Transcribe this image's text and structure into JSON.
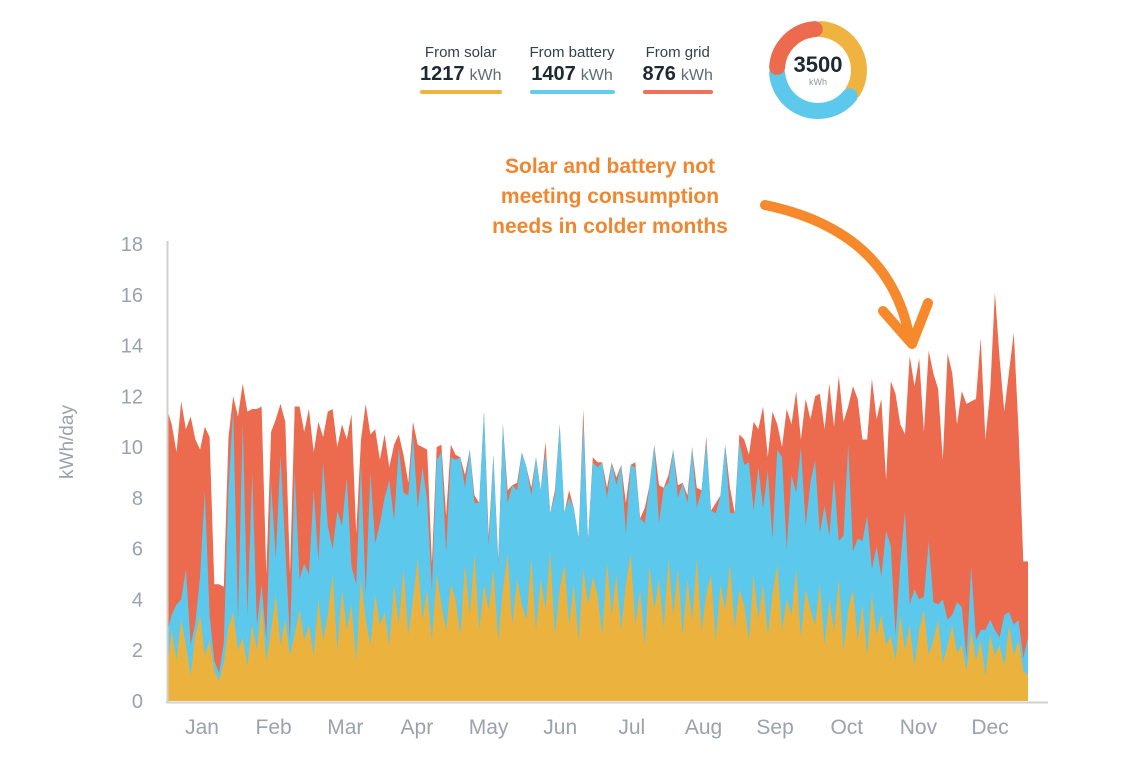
{
  "legend": {
    "items": [
      {
        "label": "From solar",
        "value": "1217",
        "unit": "kWh",
        "color": "#EFB440"
      },
      {
        "label": "From battery",
        "value": "1407",
        "unit": "kWh",
        "color": "#64CBEE"
      },
      {
        "label": "From grid",
        "value": "876",
        "unit": "kWh",
        "color": "#F0705C"
      }
    ]
  },
  "annotation": {
    "lines": [
      "Solar and battery not",
      "meeting consumption",
      "needs in colder months"
    ],
    "color": "#F0862E"
  },
  "chart_data": [
    {
      "type": "area",
      "stacked": true,
      "title": "",
      "xlabel": "",
      "ylabel": "kWh/day",
      "ylim": [
        0,
        18
      ],
      "yticks": [
        0,
        2,
        4,
        6,
        8,
        10,
        12,
        14,
        16,
        18
      ],
      "grid": false,
      "legend_position": "top",
      "sample_interval_days": 2,
      "categories": [
        "Jan",
        "Feb",
        "Mar",
        "Apr",
        "May",
        "Jun",
        "Jul",
        "Aug",
        "Sep",
        "Oct",
        "Nov",
        "Dec"
      ],
      "colors": {
        "solar": "#ECB23E",
        "battery": "#5BC8EC",
        "grid": "#EC6A4E"
      },
      "series_order": [
        "solar",
        "battery",
        "grid"
      ],
      "months": [
        {
          "label": "Jan",
          "solar": [
            1.2,
            2.8,
            1.6,
            3.2,
            2.2,
            1.0,
            2.6,
            3.4,
            1.8,
            2.4,
            1.2,
            0.8,
            1.5,
            2.9,
            3.5,
            2.0
          ],
          "battery": [
            1.5,
            0.6,
            2.2,
            0.8,
            3.0,
            1.2,
            0.5,
            1.5,
            6.5,
            1.0,
            0.4,
            0.3,
            0.8,
            5.5,
            8.0,
            1.2
          ],
          "grid": [
            8.8,
            7.5,
            6.0,
            7.8,
            5.5,
            9.0,
            7.2,
            5.0,
            2.5,
            7.0,
            3.0,
            3.5,
            2.2,
            2.0,
            0.5,
            8.0
          ]
        },
        {
          "label": "Feb",
          "solar": [
            2.5,
            1.4,
            3.0,
            2.0,
            3.8,
            1.6,
            2.8,
            4.2,
            2.2,
            3.2,
            1.8,
            2.6,
            3.6,
            2.4
          ],
          "battery": [
            8.5,
            2.0,
            6.0,
            1.0,
            0.8,
            0.8,
            5.8,
            1.4,
            7.5,
            2.8,
            0.6,
            6.5,
            1.2,
            3.0
          ],
          "grid": [
            1.5,
            8.0,
            2.5,
            8.5,
            7.0,
            2.6,
            2.0,
            5.5,
            2.0,
            5.0,
            2.6,
            2.5,
            6.8,
            5.2
          ]
        },
        {
          "label": "Mar",
          "solar": [
            3.0,
            1.8,
            4.0,
            2.4,
            3.4,
            5.0,
            2.0,
            4.4,
            2.8,
            3.8,
            1.6,
            4.8,
            3.2,
            2.2,
            4.2,
            3.0
          ],
          "battery": [
            2.0,
            6.5,
            1.5,
            7.0,
            3.5,
            1.0,
            5.5,
            2.5,
            6.0,
            1.5,
            3.0,
            4.5,
            1.0,
            6.8,
            2.0,
            4.0
          ],
          "grid": [
            6.5,
            1.5,
            5.5,
            1.0,
            4.5,
            5.5,
            2.5,
            4.0,
            1.5,
            6.0,
            2.0,
            1.0,
            7.5,
            1.5,
            4.5,
            2.5
          ]
        },
        {
          "label": "Apr",
          "solar": [
            3.5,
            2.2,
            4.6,
            3.0,
            5.2,
            2.6,
            4.0,
            5.6,
            3.2,
            4.4,
            2.4,
            5.0,
            3.8,
            2.8,
            4.6
          ],
          "battery": [
            4.5,
            6.5,
            2.5,
            7.0,
            3.0,
            5.5,
            6.5,
            2.0,
            6.0,
            3.5,
            2.0,
            4.5,
            6.0,
            3.0,
            5.0
          ],
          "grid": [
            2.5,
            0.5,
            3.0,
            0.5,
            1.5,
            0.5,
            0.5,
            2.5,
            0.8,
            2.0,
            1.0,
            0.5,
            0.3,
            1.5,
            0.5
          ]
        },
        {
          "label": "May",
          "solar": [
            4.0,
            2.6,
            5.4,
            3.4,
            5.8,
            2.8,
            4.6,
            3.6,
            5.2,
            2.4,
            4.4,
            5.8,
            3.0,
            4.8,
            3.8
          ],
          "battery": [
            5.5,
            7.0,
            3.0,
            6.5,
            2.0,
            5.0,
            6.8,
            2.5,
            4.5,
            3.0,
            6.5,
            2.0,
            5.5,
            3.5,
            6.0
          ],
          "grid": [
            0.2,
            0.0,
            0.5,
            0.0,
            0.3,
            0.0,
            0.0,
            0.4,
            0.0,
            0.2,
            0.0,
            0.5,
            0.0,
            0.3,
            0.0
          ]
        },
        {
          "label": "Jun",
          "solar": [
            3.2,
            5.6,
            2.8,
            4.8,
            3.6,
            5.9,
            2.6,
            4.4,
            5.4,
            3.0,
            4.6,
            2.4,
            5.2,
            3.8,
            4.9
          ],
          "battery": [
            6.0,
            2.5,
            6.8,
            3.5,
            6.2,
            1.5,
            5.5,
            6.5,
            2.0,
            5.0,
            3.0,
            4.0,
            5.8,
            2.5,
            4.5
          ],
          "grid": [
            0.0,
            0.3,
            0.0,
            0.0,
            0.4,
            0.0,
            0.2,
            0.0,
            0.0,
            0.3,
            0.0,
            0.0,
            0.5,
            0.0,
            0.2
          ]
        },
        {
          "label": "Jul",
          "solar": [
            4.2,
            2.6,
            5.5,
            3.4,
            5.0,
            2.8,
            4.6,
            5.8,
            3.0,
            4.4,
            2.2,
            5.3,
            3.6,
            4.8,
            2.9,
            5.6
          ],
          "battery": [
            5.0,
            6.8,
            2.5,
            6.0,
            3.5,
            6.5,
            2.0,
            3.5,
            6.2,
            2.8,
            4.8,
            3.2,
            6.5,
            2.2,
            5.5,
            3.0
          ],
          "grid": [
            0.2,
            0.0,
            0.4,
            0.0,
            0.3,
            0.0,
            1.2,
            0.0,
            0.2,
            0.0,
            0.6,
            0.0,
            0.0,
            1.5,
            0.0,
            0.3
          ]
        },
        {
          "label": "Aug",
          "solar": [
            3.4,
            5.2,
            2.6,
            4.8,
            3.2,
            5.6,
            2.8,
            4.2,
            5.0,
            2.4,
            4.6,
            3.6,
            5.4,
            2.9,
            4.4
          ],
          "battery": [
            6.5,
            2.8,
            6.0,
            3.0,
            6.8,
            2.0,
            5.5,
            6.0,
            2.5,
            5.0,
            3.5,
            6.5,
            2.0,
            4.5,
            5.8
          ],
          "grid": [
            0.0,
            0.5,
            0.0,
            0.3,
            0.0,
            0.8,
            0.0,
            0.2,
            0.0,
            0.4,
            0.0,
            0.0,
            1.0,
            0.0,
            0.3
          ]
        },
        {
          "label": "Sep",
          "solar": [
            3.8,
            2.4,
            5.0,
            3.2,
            4.6,
            2.6,
            4.2,
            5.4,
            2.8,
            4.0,
            3.4,
            5.2,
            2.5,
            4.4,
            3.6
          ],
          "battery": [
            5.5,
            7.0,
            2.5,
            6.0,
            3.0,
            6.5,
            2.2,
            4.5,
            6.8,
            2.0,
            5.5,
            3.0,
            7.5,
            2.5,
            5.0
          ],
          "grid": [
            1.0,
            0.3,
            3.5,
            1.5,
            4.0,
            0.5,
            5.0,
            1.0,
            0.4,
            5.5,
            2.0,
            4.0,
            0.3,
            5.0,
            2.5
          ]
        },
        {
          "label": "Oct",
          "solar": [
            3.0,
            4.6,
            2.2,
            4.0,
            2.8,
            4.8,
            2.0,
            3.6,
            4.4,
            2.4,
            3.8,
            1.8,
            4.2,
            2.6,
            3.4,
            2.2
          ],
          "battery": [
            6.5,
            2.0,
            5.5,
            2.5,
            6.0,
            1.5,
            4.5,
            6.5,
            1.5,
            4.0,
            2.5,
            5.5,
            1.0,
            3.5,
            1.5,
            4.5
          ],
          "grid": [
            2.5,
            5.5,
            3.0,
            6.0,
            2.0,
            6.5,
            4.5,
            1.5,
            6.5,
            5.5,
            4.0,
            3.0,
            7.5,
            5.0,
            7.0,
            2.0
          ]
        },
        {
          "label": "Nov",
          "solar": [
            2.6,
            1.6,
            3.4,
            2.0,
            3.0,
            1.4,
            2.8,
            3.6,
            1.8,
            2.4,
            3.2,
            1.5,
            2.2,
            3.0,
            1.9
          ],
          "battery": [
            3.5,
            1.0,
            2.0,
            5.5,
            0.8,
            3.0,
            1.2,
            0.5,
            4.5,
            1.5,
            0.6,
            2.5,
            1.0,
            0.4,
            2.0
          ],
          "grid": [
            6.5,
            9.5,
            5.5,
            3.0,
            9.8,
            8.0,
            9.5,
            6.5,
            7.5,
            9.0,
            8.5,
            5.5,
            10.5,
            9.5,
            7.0
          ]
        },
        {
          "label": "Dec",
          "solar": [
            2.2,
            1.2,
            2.8,
            1.6,
            2.4,
            1.0,
            2.6,
            1.8,
            2.2,
            1.4,
            3.0,
            1.8,
            2.4,
            1.2,
            1.0
          ],
          "battery": [
            1.5,
            0.5,
            2.5,
            0.8,
            0.4,
            1.8,
            0.6,
            1.0,
            0.3,
            2.0,
            0.5,
            1.2,
            0.8,
            0.5,
            1.5
          ],
          "grid": [
            8.5,
            10.0,
            6.5,
            9.5,
            11.5,
            7.5,
            9.0,
            13.3,
            11.0,
            8.0,
            9.5,
            11.5,
            7.5,
            3.8,
            3.0
          ]
        }
      ]
    },
    {
      "type": "pie",
      "subtype": "donut",
      "labels": [
        "From solar",
        "From battery",
        "From grid"
      ],
      "values": [
        1217,
        1407,
        876
      ],
      "colors": [
        "#EFB440",
        "#5BC8EC",
        "#EC6A4E"
      ],
      "center_label": "3500",
      "center_unit": "kWh"
    }
  ]
}
